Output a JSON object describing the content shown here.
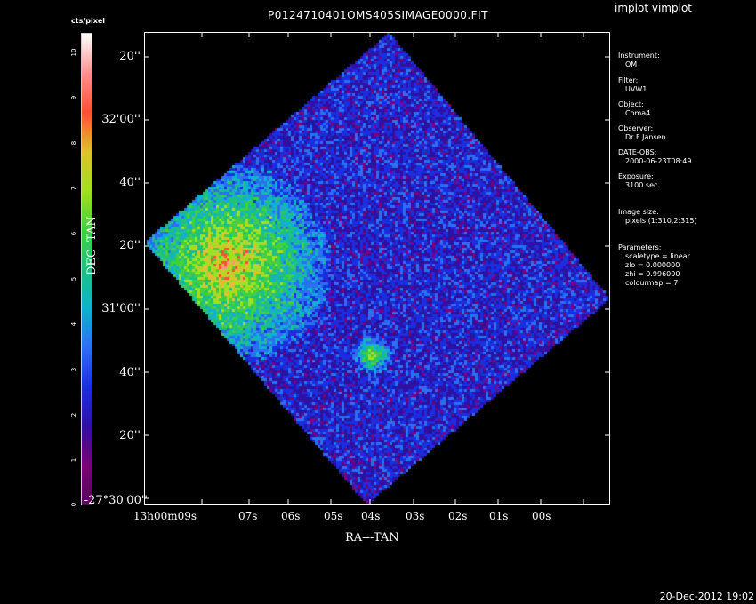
{
  "header": {
    "title": "P0124710401OMS405SIMAGE0000.FIT",
    "program": "implot vimplot"
  },
  "footer": {
    "timestamp": "20-Dec-2012 19:02"
  },
  "colorbar": {
    "label": "cts/pixel",
    "ticks": [
      "0",
      "1",
      "2",
      "3",
      "4",
      "5",
      "6",
      "7",
      "8",
      "9",
      "10"
    ],
    "colormap": [
      "#5a005a",
      "#7a007a",
      "#3010a0",
      "#1a2ee0",
      "#2a70f0",
      "#10b0d0",
      "#20c080",
      "#40d040",
      "#a0e020",
      "#e0c030",
      "#ff5030",
      "#ff9090",
      "#ffffff"
    ]
  },
  "axes": {
    "y_title": "DEC--TAN",
    "x_title": "RA---TAN",
    "y_ticks": [
      "20''",
      "32'00''",
      "40''",
      "20''",
      "31'00''",
      "40''",
      "20''",
      "-27°30'00''"
    ],
    "x_ticks": [
      "13h00m09s",
      "07s",
      "06s",
      "05s",
      "04s",
      "03s",
      "02s",
      "01s",
      "00s"
    ]
  },
  "info": {
    "instrument_label": "Instrument:",
    "instrument": "OM",
    "filter_label": "Filter:",
    "filter": "UVW1",
    "object_label": "Object:",
    "object": "Coma4",
    "observer_label": "Observer:",
    "observer": "Dr F Jansen",
    "date_label": "DATE-OBS:",
    "date": "2000-06-23T08:49",
    "exposure_label": "Exposure:",
    "exposure": "3100 sec",
    "size_label": "Image size:",
    "size": "pixels (1:310,2:315)",
    "params_label": "Parameters:",
    "param1": "scaletype = linear",
    "param2": "zlo = 0.000000",
    "param3": "zhi = 0.996000",
    "param4": "colourmap =   7"
  }
}
